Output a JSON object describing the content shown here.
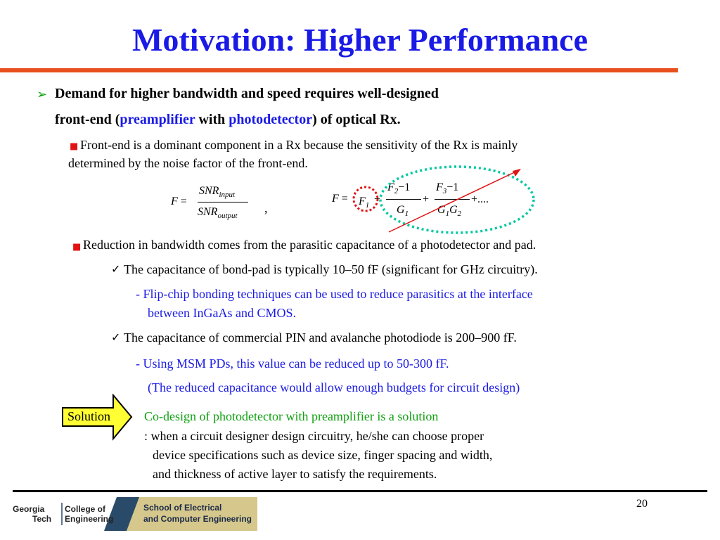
{
  "title": "Motivation: Higher Performance",
  "main_bullet": {
    "line1": "Demand for higher bandwidth and speed requires well-designed",
    "line2_pre": "front-end (",
    "preamplifier": "preamplifier",
    "with": " with ",
    "photodetector": "photodetector",
    "line2_post": ") of optical Rx."
  },
  "sub1": {
    "line1": "Front-end is a dominant component in a Rx because the sensitivity of the Rx is mainly",
    "line2": "determined by the noise factor of the front-end."
  },
  "equations": {
    "F": "F",
    "equals": "=",
    "snr_input": "SNR",
    "input_sub": "input",
    "snr_output": "SNR",
    "output_sub": "output",
    "comma": ",",
    "F1": "F",
    "sub1": "1",
    "plus": "+",
    "F2": "F",
    "sub2": "2",
    "minus_one": "−1",
    "F3": "F",
    "sub3": "3",
    "G1": "G",
    "G2": "G",
    "ellipsis": "+...."
  },
  "sub2": "Reduction in bandwidth comes from the parasitic capacitance of a photodetector and pad.",
  "check1": "The capacitance of bond-pad is typically 10–50 fF (significant for GHz circuitry).",
  "check1_note": {
    "line1": "- Flip-chip bonding techniques can be used to reduce parasitics at the interface",
    "line2": "between InGaAs and CMOS."
  },
  "check2": "The capacitance of commercial PIN and avalanche photodiode is 200–900 fF.",
  "check2_note": {
    "line1": "- Using MSM PDs, this value can be reduced up to 50-300 fF.",
    "line2": "(The reduced capacitance would allow enough budgets for circuit design)"
  },
  "solution": {
    "label": "Solution",
    "line1": "Co-design of photodetector with preamplifier is a solution",
    "line2": ": when a circuit designer design circuitry, he/she can choose proper",
    "line3": "device specifications such as device size, finger spacing and width,",
    "line4": "and thickness of active layer to satisfy the requirements."
  },
  "footer": {
    "logo_georgia": "Georgia",
    "logo_tech": "Tech",
    "logo_college": "College of",
    "logo_engineering": "Engineering",
    "school_line1": "School of Electrical",
    "school_line2": "and Computer Engineering",
    "page_number": "20"
  },
  "colors": {
    "title": "#1a1ae6",
    "rule": "#e8501e",
    "arrow_bullet": "#0a9e0a",
    "square_bullet": "#e01414",
    "note_blue": "#1a1ae6",
    "solution_green": "#10a010",
    "solution_box": "#ffff33",
    "logo_gold": "#d6c88c"
  }
}
